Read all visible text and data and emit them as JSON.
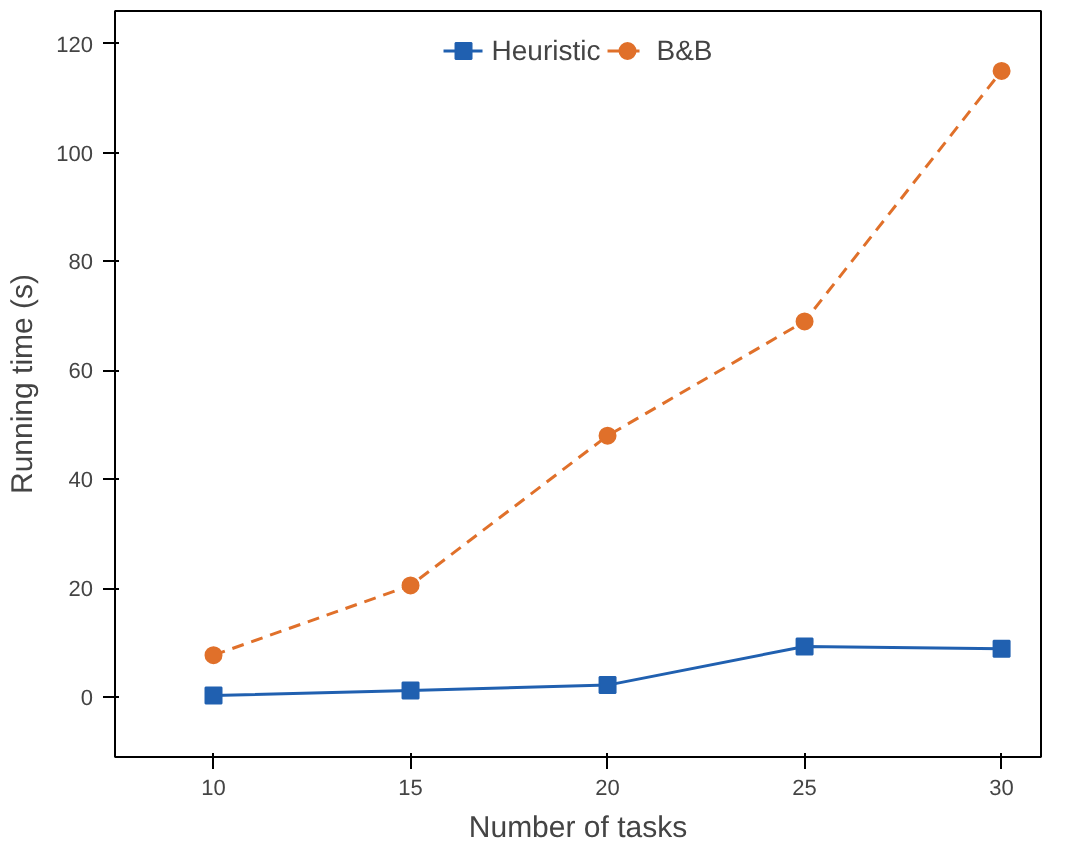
{
  "chart_data": {
    "type": "line",
    "xlabel": "Number of tasks",
    "ylabel": "Running time (s)",
    "x": [
      10,
      15,
      20,
      25,
      30
    ],
    "xlim": [
      7.5,
      31
    ],
    "xticks": [
      10,
      15,
      20,
      25,
      30
    ],
    "ylim": [
      -11,
      126
    ],
    "yticks": [
      0,
      20,
      40,
      60,
      80,
      100,
      120
    ],
    "grid": false,
    "legend": "top",
    "series": [
      {
        "name": "Heuristic",
        "color": "#2060b0",
        "marker": "square",
        "line_style": "solid",
        "values": [
          0.3,
          1.2,
          2.2,
          9.3,
          8.9
        ]
      },
      {
        "name": "B&B",
        "color": "#e0702a",
        "marker": "circle",
        "line_style": "dashed",
        "values": [
          7.7,
          20.5,
          48,
          69,
          115
        ]
      }
    ]
  }
}
